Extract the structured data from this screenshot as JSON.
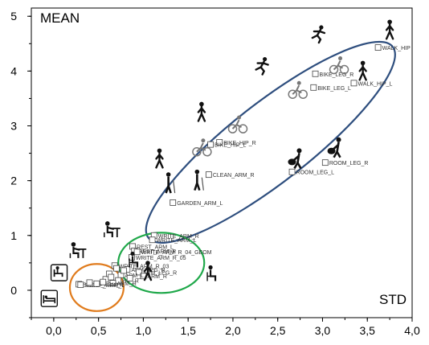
{
  "chart_data": {
    "type": "scatter",
    "corner_labels": {
      "top_left": "MEAN",
      "bottom_right": "STD"
    },
    "x_ticks": [
      "0,0",
      "0,5",
      "1,0",
      "1,5",
      "2,0",
      "2,5",
      "3,0",
      "3,5",
      "4,0"
    ],
    "y_ticks": [
      "0",
      "1",
      "2",
      "3",
      "4",
      "5"
    ],
    "xlim": [
      -0.25,
      4.0
    ],
    "ylim": [
      -0.5,
      5.15
    ],
    "points": [
      {
        "label": "WALK_HIP",
        "x": 3.62,
        "y": 4.43
      },
      {
        "label": "BIKE_LEG_R",
        "x": 2.92,
        "y": 3.95
      },
      {
        "label": "BIKE_LEG_L",
        "x": 2.9,
        "y": 3.7
      },
      {
        "label": "WALK_HIP_L",
        "x": 3.35,
        "y": 3.78
      },
      {
        "label": "BIKE_HIP_R",
        "x": 1.85,
        "y": 2.7
      },
      {
        "label": "BIKE_HIP_L",
        "x": 1.75,
        "y": 2.66
      },
      {
        "label": "CLEAN_ARM_R",
        "x": 1.73,
        "y": 2.11
      },
      {
        "label": "ROOM_LEG_R",
        "x": 3.03,
        "y": 2.33
      },
      {
        "label": "ROOM_LEG_L",
        "x": 2.66,
        "y": 2.16
      },
      {
        "label": "GARDEN_ARM_L",
        "x": 1.33,
        "y": 1.6
      },
      {
        "label": "WRITE_ARM_R",
        "x": 1.12,
        "y": 1.0
      },
      {
        "label": "WRITE_ARM_L",
        "x": 1.1,
        "y": 0.92
      },
      {
        "label": "REST_ARM_L",
        "x": 0.88,
        "y": 0.8
      },
      {
        "label": "REST_ARM_R",
        "x": 0.9,
        "y": 0.72
      },
      {
        "label": "WRITE_ARM_R_04_GEOM",
        "x": 0.93,
        "y": 0.7
      },
      {
        "label": "WRITE_ARM_R_05",
        "x": 0.87,
        "y": 0.6
      },
      {
        "label": "WRITE_ARM_R_03",
        "x": 0.68,
        "y": 0.45
      },
      {
        "label": "ARM_LEG_R",
        "x": 0.82,
        "y": 0.38
      },
      {
        "label": "ARM_LEG_R",
        "x": 0.95,
        "y": 0.33
      },
      {
        "label": "ARM_R",
        "x": 1.0,
        "y": 0.26
      },
      {
        "label": "ARM_L",
        "x": 0.75,
        "y": 0.28
      },
      {
        "label": "HIP_R",
        "x": 0.72,
        "y": 0.18
      },
      {
        "label": "ARM_R",
        "x": 0.66,
        "y": 0.13
      },
      {
        "label": "SLEEP_ARM_R",
        "x": 0.28,
        "y": 0.11
      },
      {
        "label": "SLEEP_ARM_L",
        "x": 0.3,
        "y": 0.1
      },
      {
        "label": "",
        "x": 0.58,
        "y": 0.2
      },
      {
        "label": "",
        "x": 0.62,
        "y": 0.3
      },
      {
        "label": "",
        "x": 0.55,
        "y": 0.15
      },
      {
        "label": "",
        "x": 0.78,
        "y": 0.36
      },
      {
        "label": "",
        "x": 0.7,
        "y": 0.4
      },
      {
        "label": "",
        "x": 0.85,
        "y": 0.22
      },
      {
        "label": "",
        "x": 0.48,
        "y": 0.12
      },
      {
        "label": "",
        "x": 0.64,
        "y": 0.24
      },
      {
        "label": "",
        "x": 0.4,
        "y": 0.14
      }
    ],
    "ellipses": [
      {
        "name": "high-activity-cluster",
        "cx": 2.42,
        "cy": 2.7,
        "rx": 1.73,
        "ry": 0.72,
        "angle_deg": 38,
        "color": "#2e4e7e"
      },
      {
        "name": "light-activity-cluster",
        "cx": 1.2,
        "cy": 0.5,
        "rx": 0.48,
        "ry": 0.55,
        "angle_deg": 0,
        "color": "#1fa84a"
      },
      {
        "name": "rest-cluster",
        "cx": 0.48,
        "cy": 0.05,
        "rx": 0.3,
        "ry": 0.43,
        "angle_deg": 0,
        "color": "#e07b1c"
      }
    ],
    "icons": [
      {
        "name": "walking-person-icon",
        "x": 3.75,
        "y": 4.75
      },
      {
        "name": "running-person-icon",
        "x": 2.95,
        "y": 4.68
      },
      {
        "name": "cyclist-icon",
        "x": 3.18,
        "y": 4.1
      },
      {
        "name": "running-person-icon",
        "x": 2.32,
        "y": 4.1
      },
      {
        "name": "walking-person-icon",
        "x": 3.45,
        "y": 4.0
      },
      {
        "name": "cyclist-icon",
        "x": 2.72,
        "y": 3.65
      },
      {
        "name": "walking-person-icon",
        "x": 1.65,
        "y": 3.25
      },
      {
        "name": "cyclist-icon",
        "x": 2.05,
        "y": 3.02
      },
      {
        "name": "cyclist-icon",
        "x": 1.65,
        "y": 2.6
      },
      {
        "name": "walking-person-icon",
        "x": 1.18,
        "y": 2.4
      },
      {
        "name": "cleaning-person-icon",
        "x": 1.6,
        "y": 2.0
      },
      {
        "name": "vacuum-person-icon",
        "x": 2.74,
        "y": 2.4
      },
      {
        "name": "vacuum-person-icon",
        "x": 3.18,
        "y": 2.6
      },
      {
        "name": "gardening-person-icon",
        "x": 1.28,
        "y": 1.95
      },
      {
        "name": "desk-work-icon",
        "x": 0.6,
        "y": 1.1
      },
      {
        "name": "desk-work-icon",
        "x": 0.22,
        "y": 0.72
      },
      {
        "name": "seated-person-icon",
        "x": 0.88,
        "y": 0.55
      },
      {
        "name": "seated-person-icon",
        "x": 1.75,
        "y": 0.3
      },
      {
        "name": "standing-person-icon",
        "x": 1.05,
        "y": 0.35
      },
      {
        "name": "armchair-icon",
        "x": 0.06,
        "y": 0.32
      },
      {
        "name": "bed-icon",
        "x": -0.05,
        "y": -0.15
      }
    ],
    "grid": false
  }
}
